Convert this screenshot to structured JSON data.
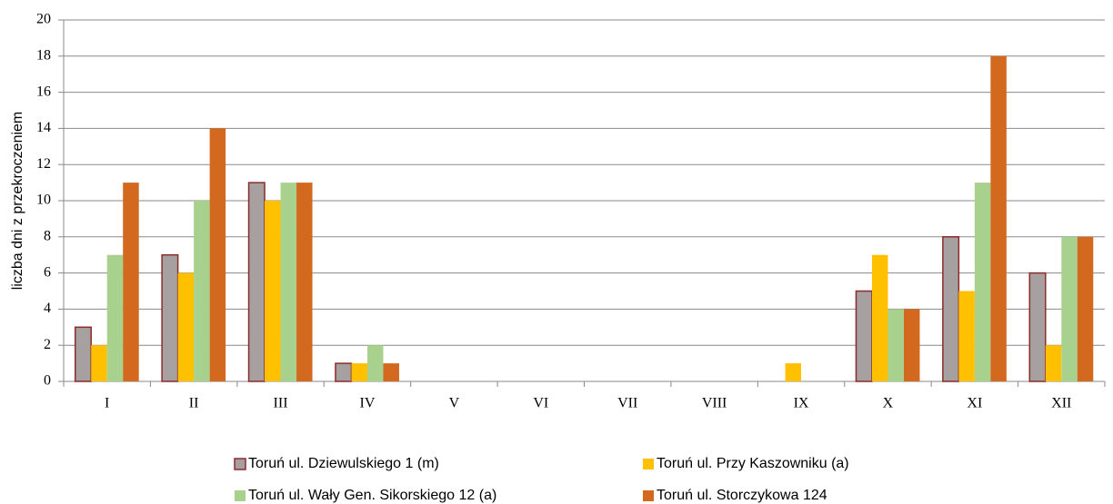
{
  "chart_data": {
    "type": "bar",
    "ylabel": "liczba dni z przekroczeniem",
    "categories": [
      "I",
      "II",
      "III",
      "IV",
      "V",
      "VI",
      "VII",
      "VIII",
      "IX",
      "X",
      "XI",
      "XII"
    ],
    "series": [
      {
        "name": "Toruń ul. Dziewulskiego 1 (m)",
        "color": "#a6a0a0",
        "edgecolor": "#8b2b2b",
        "values": [
          3,
          7,
          11,
          1,
          0,
          0,
          0,
          0,
          0,
          5,
          8,
          6
        ]
      },
      {
        "name": "Toruń ul. Przy Kaszowniku (a)",
        "color": "#ffc000",
        "values": [
          2,
          6,
          10,
          1,
          0,
          0,
          0,
          0,
          1,
          7,
          5,
          2
        ]
      },
      {
        "name": "Toruń ul. Wały Gen. Sikorskiego 12 (a)",
        "color": "#a9d18e",
        "values": [
          7,
          10,
          11,
          2,
          0,
          0,
          0,
          0,
          0,
          4,
          11,
          8
        ]
      },
      {
        "name": "Toruń ul. Storczykowa 124",
        "color": "#d2691e",
        "values": [
          11,
          14,
          11,
          1,
          0,
          0,
          0,
          0,
          0,
          4,
          18,
          8
        ]
      }
    ],
    "ylim": [
      0,
      20
    ],
    "yticks": [
      0,
      2,
      4,
      6,
      8,
      10,
      12,
      14,
      16,
      18,
      20
    ],
    "grid": true
  }
}
